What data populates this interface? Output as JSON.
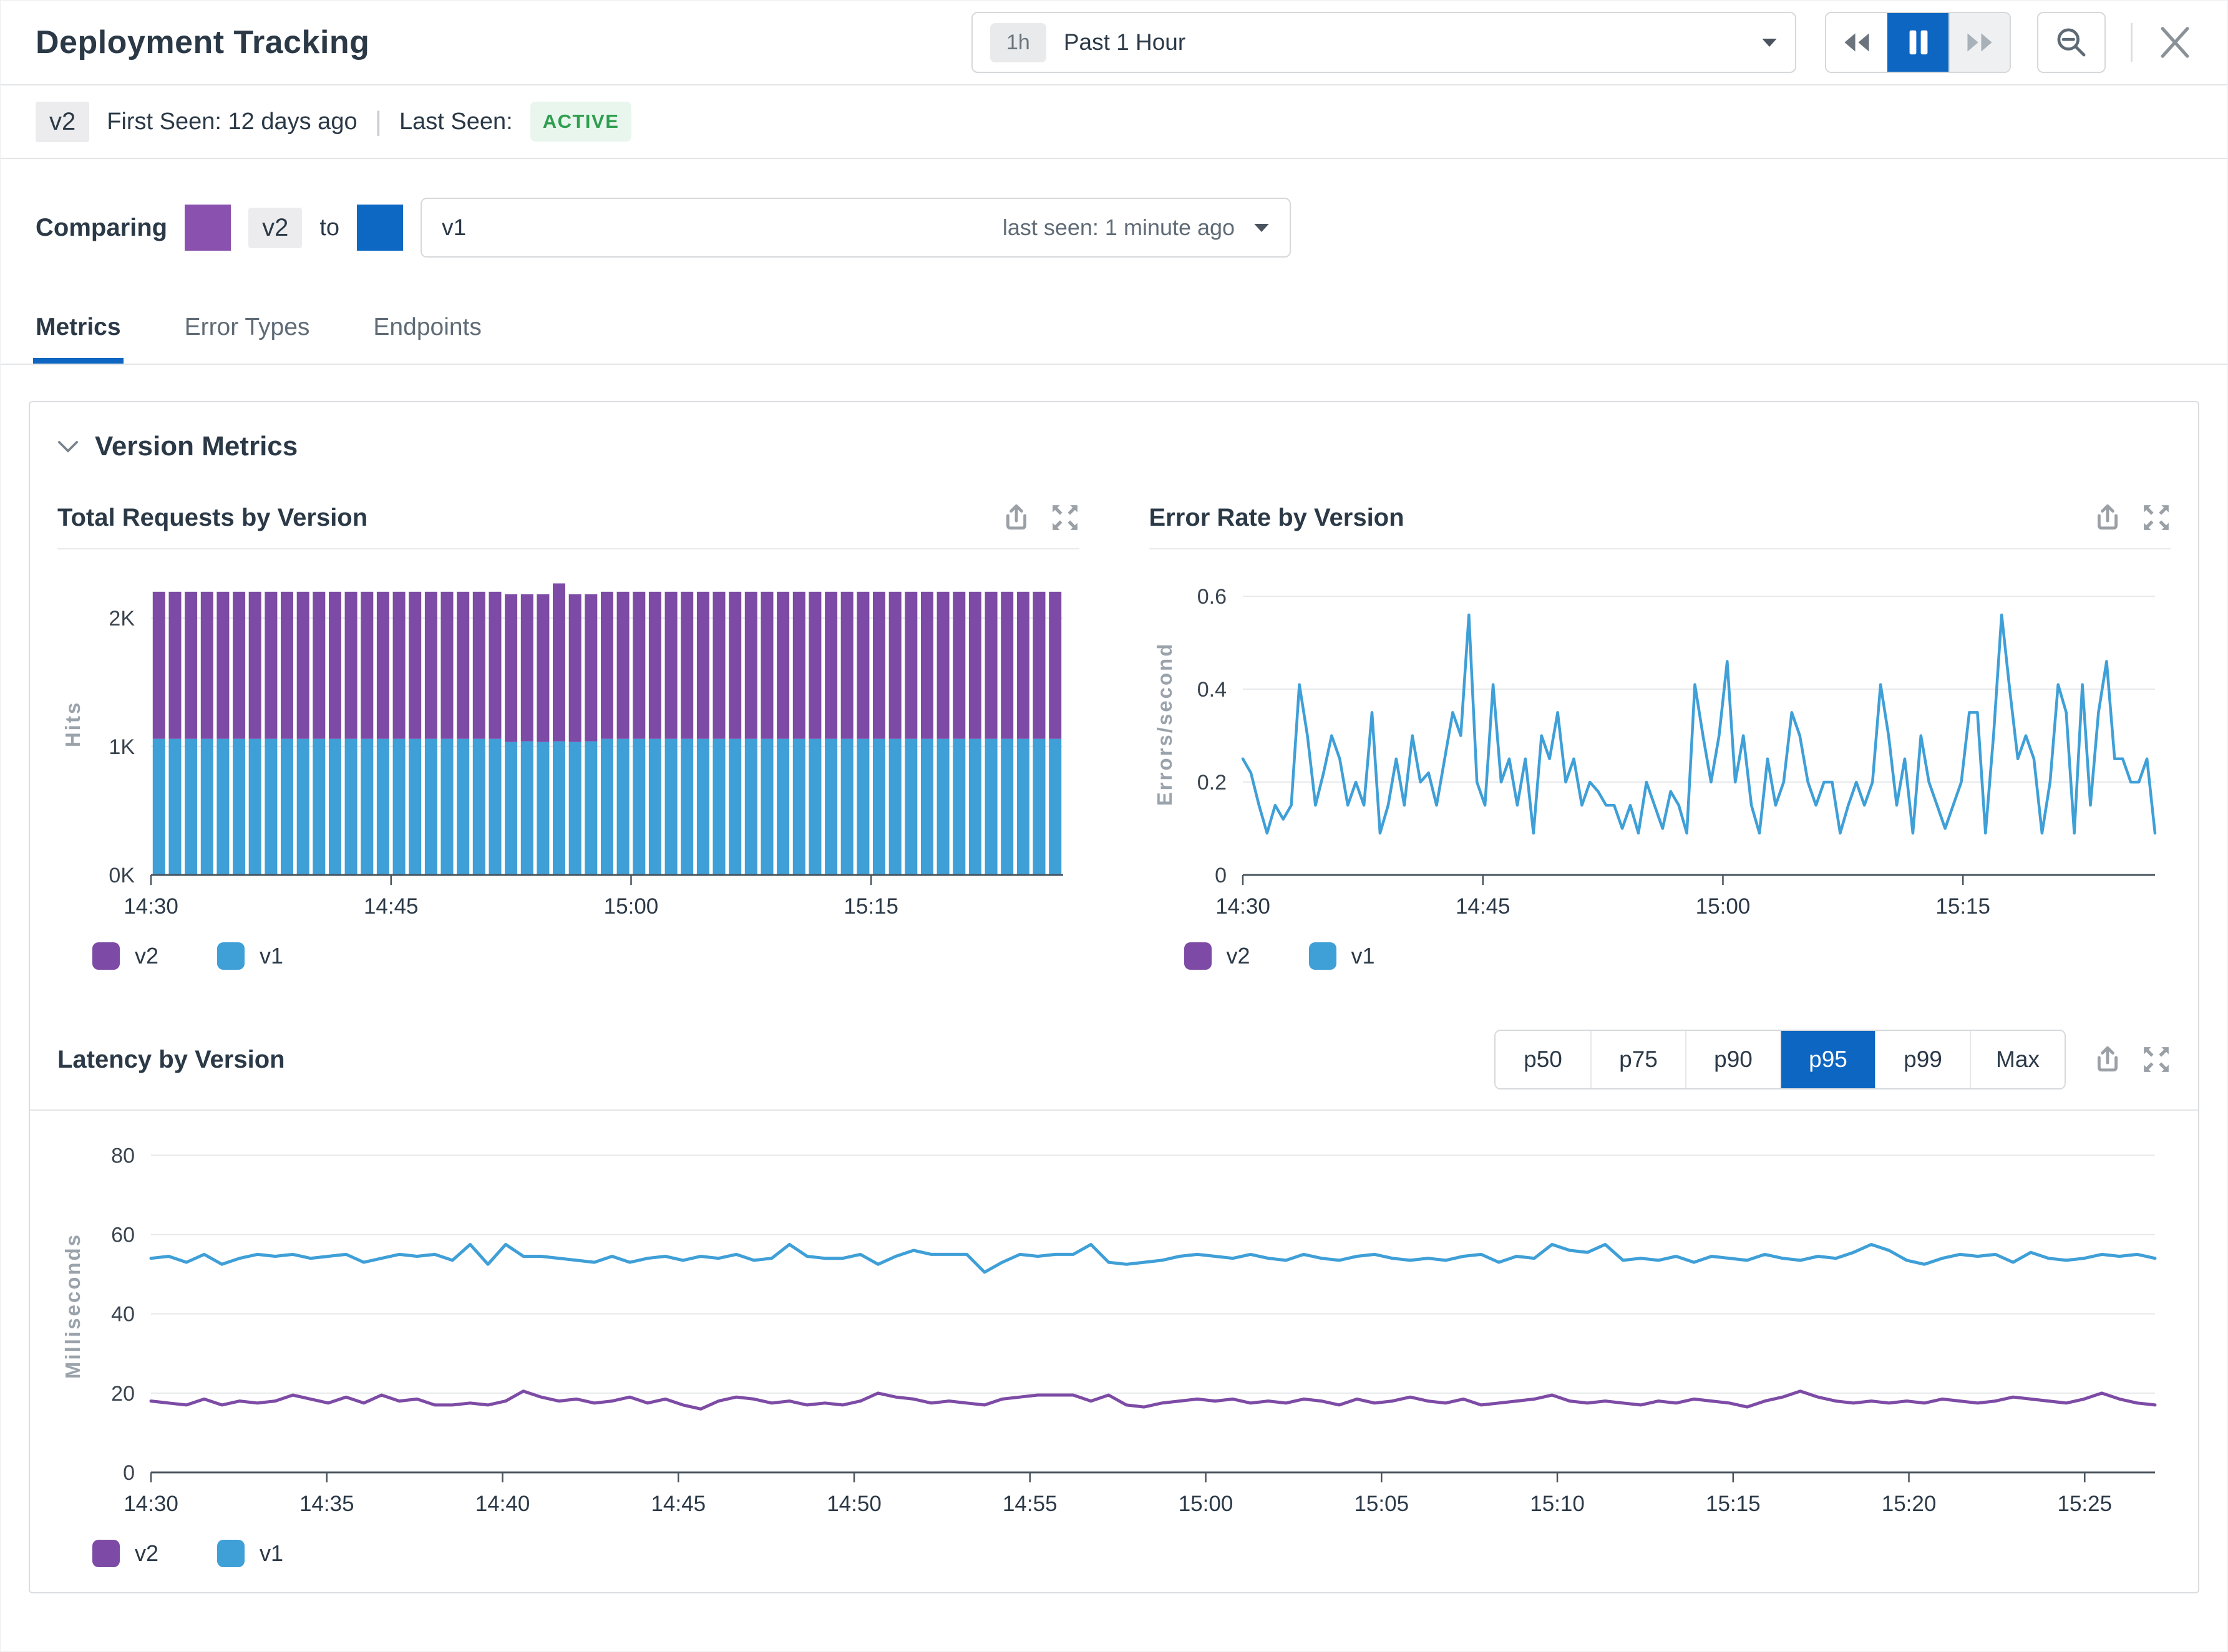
{
  "colors": {
    "accent_blue": "#0d66c2",
    "v1_blue": "#3f9fd7",
    "v2_purple": "#7d4ba5",
    "swatch_purple": "#8a52ae",
    "swatch_blue": "#0d68c4",
    "green_text": "#2f9e4f",
    "green_bg": "#e9f6ee",
    "icon_gray": "#9aa0a6",
    "dark_gray": "#6b747d",
    "light_arrow": "#a9b1b8"
  },
  "header": {
    "title": "Deployment Tracking",
    "time_range_badge": "1h",
    "time_range_label": "Past 1 Hour"
  },
  "icons": {
    "playback": [
      "rewind",
      "pause",
      "fast-forward"
    ],
    "zoom_out": "magnifier-minus",
    "close": "x",
    "chart_actions": [
      "export",
      "expand"
    ]
  },
  "version_bar": {
    "version": "v2",
    "first_seen": "First Seen: 12 days ago",
    "last_seen_label": "Last Seen:",
    "last_seen_status": "ACTIVE"
  },
  "compare": {
    "label": "Comparing",
    "primary": "v2",
    "to": "to",
    "secondary": "v1",
    "secondary_meta": "last seen: 1 minute ago"
  },
  "tabs": [
    {
      "label": "Metrics",
      "active": true
    },
    {
      "label": "Error Types",
      "active": false
    },
    {
      "label": "Endpoints",
      "active": false
    }
  ],
  "section": {
    "title": "Version Metrics"
  },
  "latency_controls": {
    "options": [
      "p50",
      "p75",
      "p90",
      "p95",
      "p99",
      "Max"
    ],
    "active": "p95"
  },
  "chart_data": [
    {
      "id": "total_requests",
      "type": "bar",
      "stacked": true,
      "title": "Total Requests by Version",
      "ylabel": "Hits",
      "x_desc": "57 one-minute buckets from 14:30 to 15:26",
      "x_span_min": 57,
      "ylim": [
        0,
        2350
      ],
      "yticks": [
        {
          "v": 0,
          "label": "0K"
        },
        {
          "v": 1000,
          "label": "1K"
        },
        {
          "v": 2000,
          "label": "2K"
        }
      ],
      "xticks": [
        {
          "m": 0,
          "label": "14:30"
        },
        {
          "m": 15,
          "label": "14:45"
        },
        {
          "m": 30,
          "label": "15:00"
        },
        {
          "m": 45,
          "label": "15:15"
        }
      ],
      "series": [
        {
          "name": "v2",
          "color_key": "v2_purple",
          "values": [
            1145,
            1145,
            1145,
            1145,
            1145,
            1145,
            1145,
            1145,
            1145,
            1145,
            1145,
            1145,
            1145,
            1145,
            1145,
            1145,
            1145,
            1145,
            1145,
            1145,
            1145,
            1145,
            1150,
            1145,
            1150,
            1230,
            1150,
            1145,
            1145,
            1145,
            1145,
            1145,
            1145,
            1145,
            1145,
            1145,
            1145,
            1145,
            1145,
            1145,
            1145,
            1145,
            1145,
            1145,
            1145,
            1145,
            1145,
            1145,
            1145,
            1145,
            1145,
            1145,
            1145,
            1145,
            1145,
            1145,
            1145
          ]
        },
        {
          "name": "v1",
          "color_key": "v1_blue",
          "values": [
            1060,
            1060,
            1060,
            1060,
            1060,
            1060,
            1060,
            1060,
            1060,
            1060,
            1060,
            1060,
            1060,
            1060,
            1060,
            1060,
            1060,
            1060,
            1060,
            1060,
            1060,
            1060,
            1035,
            1040,
            1035,
            1040,
            1035,
            1040,
            1060,
            1060,
            1060,
            1060,
            1060,
            1060,
            1060,
            1060,
            1060,
            1060,
            1060,
            1060,
            1060,
            1060,
            1060,
            1060,
            1060,
            1060,
            1060,
            1060,
            1060,
            1060,
            1060,
            1060,
            1060,
            1060,
            1060,
            1060,
            1060
          ]
        }
      ],
      "legend": [
        {
          "label": "v2",
          "color_key": "v2_purple"
        },
        {
          "label": "v1",
          "color_key": "v1_blue"
        }
      ]
    },
    {
      "id": "error_rate",
      "type": "line",
      "title": "Error Rate by Version",
      "ylabel": "Errors/second",
      "x_desc": "30-second samples from 14:30 to 15:27",
      "x_span_min": 57,
      "ylim": [
        0,
        0.65
      ],
      "yticks": [
        {
          "v": 0,
          "label": "0"
        },
        {
          "v": 0.2,
          "label": "0.2"
        },
        {
          "v": 0.4,
          "label": "0.4"
        },
        {
          "v": 0.6,
          "label": "0.6"
        }
      ],
      "xticks": [
        {
          "m": 0,
          "label": "14:30"
        },
        {
          "m": 15,
          "label": "14:45"
        },
        {
          "m": 30,
          "label": "15:00"
        },
        {
          "m": 45,
          "label": "15:15"
        }
      ],
      "series": [
        {
          "name": "v1",
          "color_key": "v1_blue",
          "values": [
            0.25,
            0.22,
            0.15,
            0.09,
            0.15,
            0.12,
            0.15,
            0.41,
            0.3,
            0.15,
            0.22,
            0.3,
            0.25,
            0.15,
            0.2,
            0.15,
            0.35,
            0.09,
            0.15,
            0.25,
            0.15,
            0.3,
            0.2,
            0.22,
            0.15,
            0.25,
            0.35,
            0.3,
            0.56,
            0.2,
            0.15,
            0.41,
            0.2,
            0.25,
            0.15,
            0.25,
            0.09,
            0.3,
            0.25,
            0.35,
            0.2,
            0.25,
            0.15,
            0.2,
            0.18,
            0.15,
            0.15,
            0.1,
            0.15,
            0.09,
            0.2,
            0.15,
            0.1,
            0.18,
            0.15,
            0.09,
            0.41,
            0.3,
            0.2,
            0.3,
            0.46,
            0.2,
            0.3,
            0.15,
            0.09,
            0.25,
            0.15,
            0.2,
            0.35,
            0.3,
            0.2,
            0.15,
            0.2,
            0.2,
            0.09,
            0.15,
            0.2,
            0.15,
            0.2,
            0.41,
            0.3,
            0.15,
            0.25,
            0.09,
            0.3,
            0.2,
            0.15,
            0.1,
            0.15,
            0.2,
            0.35,
            0.35,
            0.09,
            0.3,
            0.56,
            0.4,
            0.25,
            0.3,
            0.25,
            0.09,
            0.2,
            0.41,
            0.35,
            0.09,
            0.41,
            0.15,
            0.35,
            0.46,
            0.25,
            0.25,
            0.2,
            0.2,
            0.25,
            0.09
          ]
        }
      ],
      "legend": [
        {
          "label": "v2",
          "color_key": "v2_purple"
        },
        {
          "label": "v1",
          "color_key": "v1_blue"
        }
      ]
    },
    {
      "id": "latency",
      "type": "line",
      "title": "Latency by Version",
      "ylabel": "Milliseconds",
      "percentile_shown": "p95",
      "x_desc": "30-second samples from 14:30 to 15:27",
      "x_span_min": 57,
      "ylim": [
        0,
        84
      ],
      "yticks": [
        {
          "v": 0,
          "label": "0"
        },
        {
          "v": 20,
          "label": "20"
        },
        {
          "v": 40,
          "label": "40"
        },
        {
          "v": 60,
          "label": "60"
        },
        {
          "v": 80,
          "label": "80"
        }
      ],
      "xticks": [
        {
          "m": 0,
          "label": "14:30"
        },
        {
          "m": 5,
          "label": "14:35"
        },
        {
          "m": 10,
          "label": "14:40"
        },
        {
          "m": 15,
          "label": "14:45"
        },
        {
          "m": 20,
          "label": "14:50"
        },
        {
          "m": 25,
          "label": "14:55"
        },
        {
          "m": 30,
          "label": "15:00"
        },
        {
          "m": 35,
          "label": "15:05"
        },
        {
          "m": 40,
          "label": "15:10"
        },
        {
          "m": 45,
          "label": "15:15"
        },
        {
          "m": 50,
          "label": "15:20"
        },
        {
          "m": 55,
          "label": "15:25"
        }
      ],
      "series": [
        {
          "name": "v1",
          "color_key": "v1_blue",
          "values": [
            54,
            54.5,
            53,
            55,
            52.5,
            54,
            55,
            54.5,
            55,
            54,
            54.5,
            55,
            53,
            54,
            55,
            54.5,
            55,
            53.5,
            57.5,
            52.5,
            57.5,
            54.5,
            54.5,
            54,
            53.5,
            53,
            54.5,
            53,
            54,
            54.5,
            53.5,
            54.5,
            54,
            55,
            53.5,
            54,
            57.5,
            54.5,
            54,
            54,
            55,
            52.5,
            54.5,
            56,
            55,
            55,
            55,
            50.5,
            53,
            55,
            54.5,
            55,
            55,
            57.5,
            53,
            52.5,
            53,
            53.5,
            54.5,
            55,
            54.5,
            54,
            55,
            54,
            53.5,
            55,
            54,
            53.5,
            54.5,
            55,
            54,
            53.5,
            54,
            53.5,
            54.5,
            55,
            53,
            54.5,
            54,
            57.5,
            56,
            55.5,
            57.5,
            53.5,
            54,
            53.5,
            54.5,
            53,
            54.5,
            54,
            53.5,
            55,
            54,
            53.5,
            54.5,
            54,
            55.5,
            57.5,
            56,
            53.5,
            52.5,
            54,
            55,
            54.5,
            55,
            53,
            55.5,
            54,
            53.5,
            54,
            55,
            54.5,
            55,
            54
          ]
        },
        {
          "name": "v2",
          "color_key": "v2_purple",
          "values": [
            18,
            17.5,
            17,
            18.5,
            17,
            18,
            17.5,
            18,
            19.5,
            18.5,
            17.5,
            19,
            17.5,
            19.5,
            18,
            18.5,
            17,
            17,
            17.5,
            17,
            18,
            20.5,
            19,
            18,
            18.5,
            17.5,
            18,
            19,
            17.5,
            18.5,
            17,
            16,
            18,
            19,
            18.5,
            17.5,
            18,
            17,
            17.5,
            17,
            18,
            20,
            19,
            18.5,
            17.5,
            18,
            17.5,
            17,
            18.5,
            19,
            19.5,
            19.5,
            19.5,
            18,
            19.5,
            17,
            16.5,
            17.5,
            18,
            18.5,
            18,
            18.5,
            17.5,
            18,
            17.5,
            18.5,
            18,
            17,
            18.5,
            17.5,
            18,
            19,
            18,
            17.5,
            18.5,
            17,
            17.5,
            18,
            18.5,
            19.5,
            18,
            17.5,
            18,
            17.5,
            17,
            18,
            17.5,
            18.5,
            18,
            17.5,
            16.5,
            18,
            19,
            20.5,
            19,
            18,
            17.5,
            18,
            17.5,
            18,
            17.5,
            18.5,
            18,
            17.5,
            18,
            19,
            18.5,
            18,
            17.5,
            18.5,
            20,
            18.5,
            17.5,
            17
          ]
        }
      ],
      "legend": [
        {
          "label": "v2",
          "color_key": "v2_purple"
        },
        {
          "label": "v1",
          "color_key": "v1_blue"
        }
      ]
    }
  ]
}
